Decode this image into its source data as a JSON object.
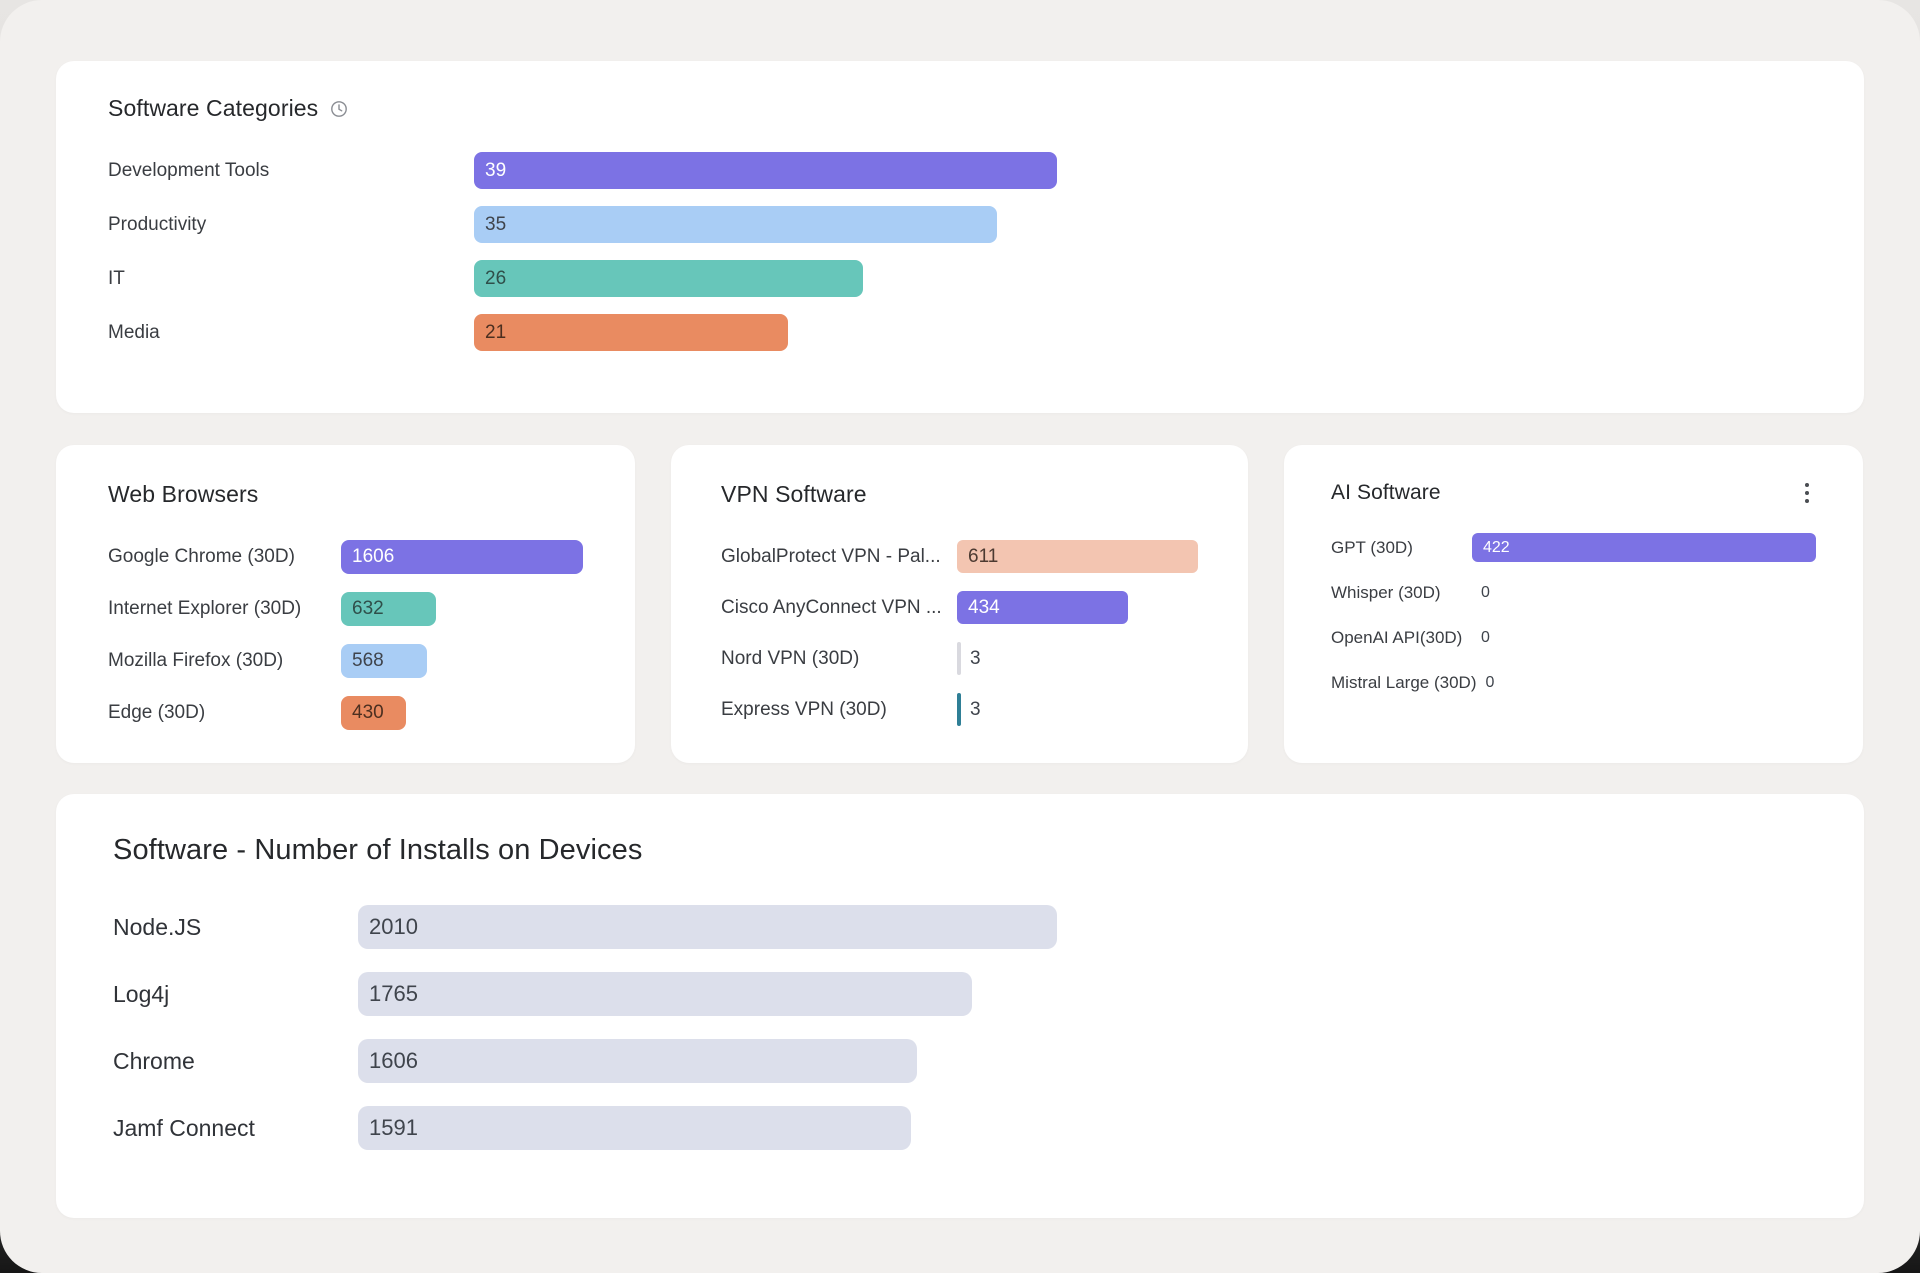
{
  "icons": {
    "categories_header": "clock-icon",
    "ai_header_menu": "kebab-menu-icon"
  },
  "colors": {
    "purple": "#7c72e4",
    "light_blue": "#a9cdf5",
    "teal": "#67c6ba",
    "orange": "#e98b61",
    "salmon": "#f3c5b1",
    "dark_teal": "#2f7f96",
    "light_gray": "#d9d9df",
    "lavender_gray": "#dcdfeb",
    "card_bg": "#ffffff",
    "page_bg": "#f2f0ee"
  },
  "chart_data": [
    {
      "id": "software_categories",
      "type": "bar",
      "orientation": "horizontal",
      "title": "Software Categories",
      "rows": [
        {
          "label": "Development Tools",
          "value": 39,
          "color": "#7c72e4",
          "text": "#ffffff"
        },
        {
          "label": "Productivity",
          "value": 35,
          "color": "#a9cdf5",
          "text": "#3f444c"
        },
        {
          "label": "IT",
          "value": 26,
          "color": "#67c6ba",
          "text": "#2f4f4a"
        },
        {
          "label": "Media",
          "value": 21,
          "color": "#e98b61",
          "text": "#4c2f20"
        }
      ]
    },
    {
      "id": "web_browsers",
      "type": "bar",
      "orientation": "horizontal",
      "title": "Web Browsers",
      "rows": [
        {
          "label": "Google Chrome (30D)",
          "value": 1606,
          "color": "#7c72e4",
          "text": "#ffffff"
        },
        {
          "label": "Internet Explorer (30D)",
          "value": 632,
          "color": "#67c6ba",
          "text": "#2f4f4a"
        },
        {
          "label": "Mozilla Firefox (30D)",
          "value": 568,
          "color": "#a9cdf5",
          "text": "#3f444c"
        },
        {
          "label": "Edge (30D)",
          "value": 430,
          "color": "#e98b61",
          "text": "#4c2f20"
        }
      ]
    },
    {
      "id": "vpn_software",
      "type": "bar",
      "orientation": "horizontal",
      "title": "VPN Software",
      "rows": [
        {
          "label": "GlobalProtect VPN - Pal...",
          "value": 611,
          "color": "#f3c5b1",
          "text": "#4c3a31"
        },
        {
          "label": "Cisco AnyConnect VPN ...",
          "value": 434,
          "color": "#7c72e4",
          "text": "#ffffff"
        },
        {
          "label": "Nord VPN (30D)",
          "value": 3,
          "color": "#d9d9df",
          "text": "#3f444c"
        },
        {
          "label": "Express VPN (30D)",
          "value": 3,
          "color": "#2f7f96",
          "text": "#3f444c"
        }
      ]
    },
    {
      "id": "ai_software",
      "type": "bar",
      "orientation": "horizontal",
      "title": "AI Software",
      "rows": [
        {
          "label": "GPT (30D)",
          "value": 422,
          "color": "#7c72e4",
          "text": "#ffffff"
        },
        {
          "label": "Whisper (30D)",
          "value": 0,
          "color": "#7c72e4",
          "text": "#3f444c"
        },
        {
          "label": "OpenAI API(30D)",
          "value": 0,
          "color": "#7c72e4",
          "text": "#3f444c"
        },
        {
          "label": "Mistral Large (30D)",
          "value": 0,
          "color": "#7c72e4",
          "text": "#3f444c"
        }
      ]
    },
    {
      "id": "software_installs",
      "type": "bar",
      "orientation": "horizontal",
      "title": "Software - Number of Installs on Devices",
      "rows": [
        {
          "label": "Node.JS",
          "value": 2010,
          "color": "#dcdfeb",
          "text": "#3f444c"
        },
        {
          "label": "Log4j",
          "value": 1765,
          "color": "#dcdfeb",
          "text": "#3f444c"
        },
        {
          "label": "Chrome",
          "value": 1606,
          "color": "#dcdfeb",
          "text": "#3f444c"
        },
        {
          "label": "Jamf Connect",
          "value": 1591,
          "color": "#dcdfeb",
          "text": "#3f444c"
        }
      ]
    }
  ]
}
